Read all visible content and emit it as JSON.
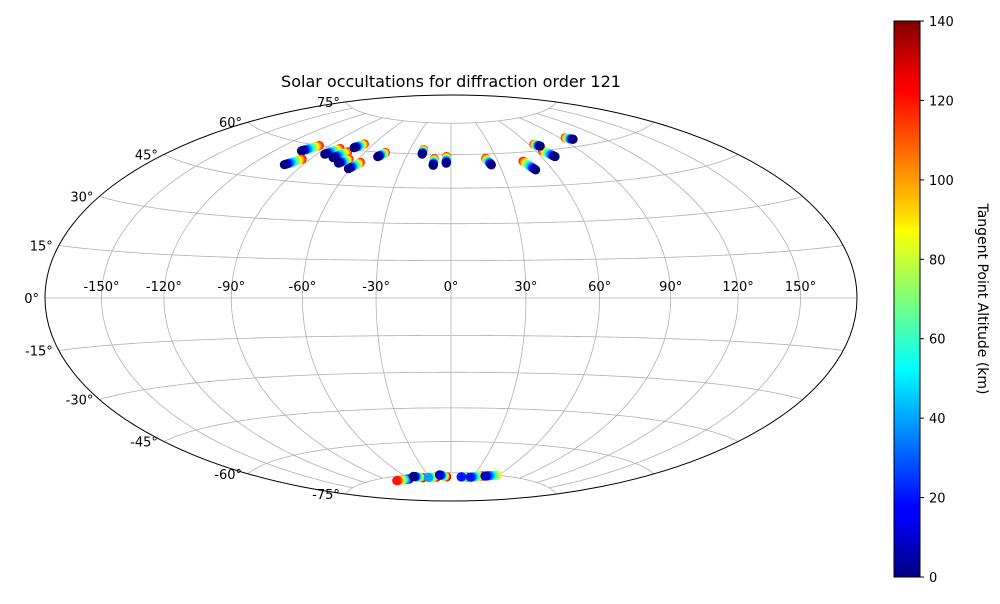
{
  "chart_data": {
    "type": "scatter",
    "projection": "hammer",
    "title": "Solar occultations for diffraction order 121",
    "grid": true,
    "lon_ticks": [
      "-150°",
      "-120°",
      "-90°",
      "-60°",
      "-30°",
      "0°",
      "30°",
      "60°",
      "90°",
      "120°",
      "150°"
    ],
    "lon_tick_values": [
      -150,
      -120,
      -90,
      -60,
      -30,
      0,
      30,
      60,
      90,
      120,
      150
    ],
    "lat_ticks": [
      "-75°",
      "-60°",
      "-45°",
      "-30°",
      "-15°",
      "0°",
      "15°",
      "30°",
      "45°",
      "60°",
      "75°"
    ],
    "lat_tick_values": [
      -75,
      -60,
      -45,
      -30,
      -15,
      0,
      15,
      30,
      45,
      60,
      75
    ],
    "colorbar": {
      "label": "Tangent Point Altitude (km)",
      "min": 0,
      "max": 140,
      "colormap": "jet",
      "ticks": [
        "0",
        "20",
        "40",
        "60",
        "80",
        "100",
        "120",
        "140"
      ],
      "tick_values": [
        0,
        20,
        40,
        60,
        80,
        100,
        120,
        140
      ]
    },
    "tracks": [
      {
        "lon_start": -103,
        "lat_start": 57,
        "lon_end": -97,
        "lat_end": 60,
        "alt_start": 0,
        "alt_end": 120
      },
      {
        "lon_start": -101,
        "lat_start": 51,
        "lon_end": -95,
        "lat_end": 54,
        "alt_start": 0,
        "alt_end": 120
      },
      {
        "lon_start": -85,
        "lat_start": 57,
        "lon_end": -80,
        "lat_end": 60,
        "alt_start": 0,
        "alt_end": 120
      },
      {
        "lon_start": -77,
        "lat_start": 56,
        "lon_end": -72,
        "lat_end": 59,
        "alt_start": 0,
        "alt_end": 120
      },
      {
        "lon_start": -71,
        "lat_start": 61,
        "lon_end": -67,
        "lat_end": 63,
        "alt_start": 0,
        "alt_end": 120
      },
      {
        "lon_start": -70,
        "lat_start": 54,
        "lon_end": -66,
        "lat_end": 56,
        "alt_start": 0,
        "alt_end": 120
      },
      {
        "lon_start": -61,
        "lat_start": 52,
        "lon_end": -57,
        "lat_end": 55,
        "alt_start": 0,
        "alt_end": 120
      },
      {
        "lon_start": -49,
        "lat_start": 58,
        "lon_end": -46,
        "lat_end": 60,
        "alt_start": 0,
        "alt_end": 120
      },
      {
        "lon_start": -20,
        "lat_start": 60,
        "lon_end": -20,
        "lat_end": 62,
        "alt_start": 0,
        "alt_end": 120
      },
      {
        "lon_start": -11,
        "lat_start": 55,
        "lon_end": -11,
        "lat_end": 58,
        "alt_start": 0,
        "alt_end": 120
      },
      {
        "lon_start": -3,
        "lat_start": 56,
        "lon_end": -3,
        "lat_end": 59,
        "alt_start": 0,
        "alt_end": 120
      },
      {
        "lon_start": 25,
        "lat_start": 55,
        "lon_end": 23,
        "lat_end": 58,
        "alt_start": 0,
        "alt_end": 120
      },
      {
        "lon_start": 50,
        "lat_start": 52,
        "lon_end": 46,
        "lat_end": 56,
        "alt_start": 0,
        "alt_end": 120
      },
      {
        "lon_start": 69,
        "lat_start": 57,
        "lon_end": 65,
        "lat_end": 60,
        "alt_start": 0,
        "alt_end": 120
      },
      {
        "lon_start": 67,
        "lat_start": 62,
        "lon_end": 64,
        "lat_end": 63,
        "alt_start": 0,
        "alt_end": 120
      },
      {
        "lon_start": 98,
        "lat_start": 63,
        "lon_end": 94,
        "lat_end": 64,
        "alt_start": 0,
        "alt_end": 120
      },
      {
        "lon_start": -80,
        "lat_start": -77,
        "lon_end": -60,
        "lat_end": -77,
        "alt_start": 120,
        "alt_end": 0
      },
      {
        "lon_start": -50,
        "lat_start": -76,
        "lon_end": -40,
        "lat_end": -77,
        "alt_start": 0,
        "alt_end": 140
      },
      {
        "lon_start": -32,
        "lat_start": -77,
        "lon_end": -20,
        "lat_end": -77,
        "alt_start": 40,
        "alt_end": 140
      },
      {
        "lon_start": -15,
        "lat_start": -76,
        "lon_end": -6,
        "lat_end": -77,
        "alt_start": 10,
        "alt_end": 140
      },
      {
        "lon_start": 14,
        "lat_start": -77,
        "lon_end": 22,
        "lat_end": -77,
        "alt_start": 20,
        "alt_end": 140
      },
      {
        "lon_start": 27,
        "lat_start": -77,
        "lon_end": 42,
        "lat_end": -76,
        "alt_start": 20,
        "alt_end": 130
      },
      {
        "lon_start": 45,
        "lat_start": -76,
        "lon_end": 58,
        "lat_end": -75,
        "alt_start": 10,
        "alt_end": 90
      }
    ]
  }
}
